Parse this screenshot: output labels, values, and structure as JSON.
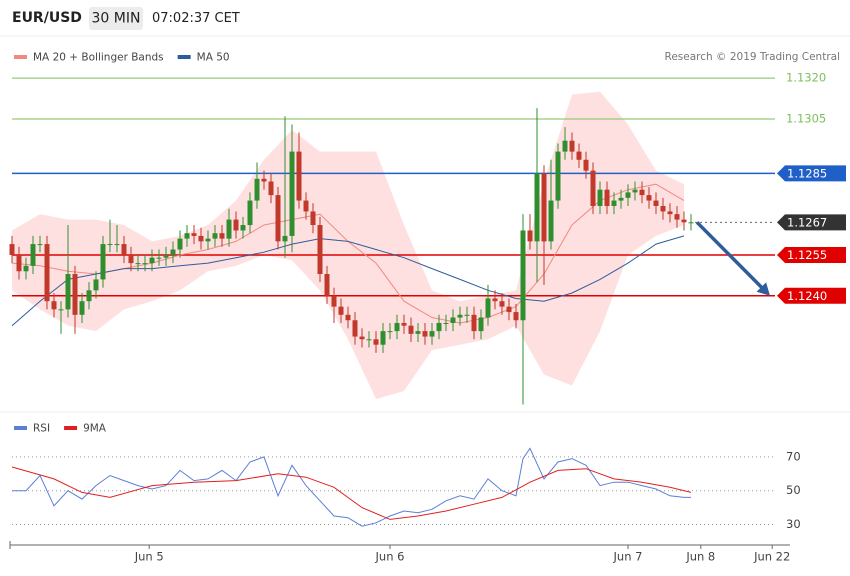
{
  "chart_data": {
    "type": "candlestick",
    "title": "EUR/USD",
    "timeframe": "30 MIN",
    "time": "07:02:37 CET",
    "credit": "Research © 2019 Trading Central",
    "xlim": [
      0,
      109
    ],
    "xticks": [
      {
        "value": 19.6,
        "label": "Jun 5"
      },
      {
        "value": 54,
        "label": "Jun 6"
      },
      {
        "value": 88,
        "label": "Jun 7"
      },
      {
        "value": 98.4,
        "label": "Jun 8"
      },
      {
        "value": 108.6,
        "label": "Jun 22"
      }
    ],
    "ylim": [
      1.1198,
      1.1323
    ],
    "up_color": "#2f8f2f",
    "down_color": "#c0392b",
    "open": [
      1.1259,
      1.1255,
      1.1249,
      1.1251,
      1.1259,
      1.1259,
      1.1238,
      1.1235,
      1.1235,
      1.1248,
      1.1233,
      1.1238,
      1.1242,
      1.1246,
      1.1259,
      1.1259,
      1.1259,
      1.1255,
      1.1252,
      1.1252,
      1.1252,
      1.1254,
      1.1254,
      1.1255,
      1.1257,
      1.1261,
      1.1263,
      1.1262,
      1.126,
      1.1261,
      1.1263,
      1.1261,
      1.1268,
      1.1264,
      1.1266,
      1.1275,
      1.1283,
      1.1282,
      1.1277,
      1.126,
      1.1262,
      1.1293,
      1.1275,
      1.1271,
      1.1266,
      1.1248,
      1.124,
      1.1236,
      1.1233,
      1.1231,
      1.1225,
      1.1224,
      1.1224,
      1.1222,
      1.1227,
      1.1227,
      1.123,
      1.1229,
      1.1226,
      1.1227,
      1.1225,
      1.1227,
      1.123,
      1.123,
      1.1232,
      1.1233,
      1.1233,
      1.1227,
      1.1232,
      1.1239,
      1.1238,
      1.1236,
      1.1234,
      1.1231,
      1.1264,
      1.126,
      1.1285,
      1.126,
      1.1275,
      1.1293,
      1.1297,
      1.1293,
      1.129,
      1.1286,
      1.1273,
      1.1279,
      1.1273,
      1.1275,
      1.1276,
      1.1278,
      1.1279,
      1.1277,
      1.1275,
      1.1273,
      1.1271,
      1.127,
      1.1268,
      1.1267
    ],
    "high": [
      1.1262,
      1.1258,
      1.1254,
      1.1262,
      1.1262,
      1.1262,
      1.1241,
      1.1238,
      1.1266,
      1.1251,
      1.1241,
      1.1245,
      1.1249,
      1.1262,
      1.1268,
      1.1266,
      1.1262,
      1.1258,
      1.1255,
      1.1255,
      1.1257,
      1.1257,
      1.1258,
      1.126,
      1.1264,
      1.1266,
      1.1266,
      1.1265,
      1.1264,
      1.1266,
      1.1266,
      1.1272,
      1.1271,
      1.1269,
      1.1278,
      1.1289,
      1.1286,
      1.1285,
      1.128,
      1.1306,
      1.1303,
      1.13,
      1.1278,
      1.1274,
      1.1269,
      1.1251,
      1.1243,
      1.1239,
      1.1236,
      1.1234,
      1.1228,
      1.1227,
      1.1227,
      1.123,
      1.123,
      1.1233,
      1.1233,
      1.1232,
      1.123,
      1.123,
      1.123,
      1.1233,
      1.1233,
      1.1235,
      1.1236,
      1.1236,
      1.1236,
      1.1235,
      1.1244,
      1.1242,
      1.1241,
      1.1239,
      1.1237,
      1.127,
      1.127,
      1.1309,
      1.1288,
      1.129,
      1.1296,
      1.1302,
      1.13,
      1.1296,
      1.1293,
      1.1289,
      1.1282,
      1.1282,
      1.1278,
      1.1279,
      1.1281,
      1.1282,
      1.1282,
      1.128,
      1.1278,
      1.1276,
      1.1274,
      1.1273,
      1.1271,
      1.127
    ],
    "low": [
      1.1252,
      1.1246,
      1.1246,
      1.1248,
      1.1256,
      1.1235,
      1.1232,
      1.1226,
      1.1232,
      1.1226,
      1.123,
      1.1235,
      1.1239,
      1.1243,
      1.1256,
      1.1256,
      1.1252,
      1.1249,
      1.1249,
      1.1249,
      1.1249,
      1.1251,
      1.1251,
      1.1252,
      1.1254,
      1.1258,
      1.1259,
      1.1257,
      1.1257,
      1.1258,
      1.1258,
      1.1258,
      1.1261,
      1.1261,
      1.1263,
      1.1272,
      1.1279,
      1.1274,
      1.1257,
      1.1254,
      1.1256,
      1.1272,
      1.1268,
      1.1263,
      1.1245,
      1.1237,
      1.123,
      1.123,
      1.1228,
      1.1222,
      1.1221,
      1.1221,
      1.1219,
      1.1219,
      1.1224,
      1.1224,
      1.1226,
      1.1223,
      1.1223,
      1.1222,
      1.1222,
      1.1224,
      1.1227,
      1.1227,
      1.1229,
      1.123,
      1.1224,
      1.1224,
      1.1229,
      1.1235,
      1.1233,
      1.1231,
      1.1228,
      1.12,
      1.1257,
      1.1245,
      1.1244,
      1.1257,
      1.1272,
      1.129,
      1.129,
      1.1287,
      1.1283,
      1.127,
      1.127,
      1.127,
      1.127,
      1.1272,
      1.1273,
      1.1275,
      1.1274,
      1.1272,
      1.127,
      1.1268,
      1.1267,
      1.1265,
      1.1264,
      1.1264
    ],
    "close": [
      1.1255,
      1.1249,
      1.1251,
      1.1259,
      1.1259,
      1.1238,
      1.1235,
      1.1235,
      1.1248,
      1.1233,
      1.1238,
      1.1242,
      1.1246,
      1.1259,
      1.1259,
      1.1259,
      1.1255,
      1.1252,
      1.1252,
      1.1252,
      1.1254,
      1.1254,
      1.1255,
      1.1257,
      1.1261,
      1.1263,
      1.1262,
      1.126,
      1.1261,
      1.1263,
      1.1261,
      1.1268,
      1.1264,
      1.1266,
      1.1275,
      1.1283,
      1.1282,
      1.1277,
      1.126,
      1.1262,
      1.1293,
      1.1275,
      1.1271,
      1.1266,
      1.1248,
      1.124,
      1.1236,
      1.1233,
      1.1231,
      1.1225,
      1.1224,
      1.1224,
      1.1222,
      1.1227,
      1.1227,
      1.123,
      1.1229,
      1.1226,
      1.1227,
      1.1225,
      1.1227,
      1.123,
      1.123,
      1.1232,
      1.1233,
      1.1233,
      1.1227,
      1.1232,
      1.1239,
      1.1238,
      1.1236,
      1.1234,
      1.1231,
      1.1264,
      1.126,
      1.1285,
      1.126,
      1.1275,
      1.1293,
      1.1297,
      1.1293,
      1.129,
      1.1286,
      1.1273,
      1.1279,
      1.1273,
      1.1275,
      1.1276,
      1.1278,
      1.1279,
      1.1277,
      1.1275,
      1.1273,
      1.1271,
      1.127,
      1.1268,
      1.1267,
      1.1267
    ],
    "lines": [
      {
        "name": "MA 20 + Bollinger Bands",
        "color": "#f08a80",
        "band_color": "#ffe0e0",
        "x": [
          0,
          4,
          8,
          12,
          16,
          20,
          24,
          28,
          32,
          36,
          40,
          44,
          48,
          52,
          56,
          60,
          64,
          68,
          72,
          76,
          80,
          84,
          88,
          92,
          96
        ],
        "values": [
          1.1252,
          1.1251,
          1.1249,
          1.1248,
          1.125,
          1.1252,
          1.1255,
          1.1257,
          1.126,
          1.1266,
          1.1268,
          1.127,
          1.126,
          1.1252,
          1.1238,
          1.1232,
          1.123,
          1.1232,
          1.1236,
          1.1248,
          1.1266,
          1.1275,
          1.1279,
          1.1281,
          1.1275
        ],
        "upper": [
          1.1264,
          1.127,
          1.1268,
          1.1268,
          1.1266,
          1.126,
          1.1262,
          1.1266,
          1.1275,
          1.129,
          1.1301,
          1.1293,
          1.1293,
          1.1293,
          1.1266,
          1.1242,
          1.1238,
          1.124,
          1.1242,
          1.1282,
          1.1314,
          1.1315,
          1.1303,
          1.1286,
          1.1281
        ],
        "lower": [
          1.1242,
          1.1235,
          1.1229,
          1.1227,
          1.1235,
          1.1238,
          1.1242,
          1.1249,
          1.1251,
          1.1255,
          1.1253,
          1.1242,
          1.1224,
          1.1202,
          1.1205,
          1.122,
          1.1222,
          1.1224,
          1.1229,
          1.1211,
          1.1207,
          1.1227,
          1.1255,
          1.1262,
          1.1266
        ]
      },
      {
        "name": "MA 50",
        "color": "#2f5d9c",
        "x": [
          0,
          4,
          8,
          12,
          16,
          20,
          24,
          28,
          32,
          36,
          40,
          44,
          48,
          52,
          56,
          60,
          64,
          68,
          72,
          76,
          80,
          84,
          88,
          92,
          96
        ],
        "values": [
          1.1229,
          1.1238,
          1.1246,
          1.1248,
          1.125,
          1.125,
          1.1251,
          1.1252,
          1.1254,
          1.1256,
          1.1259,
          1.1261,
          1.126,
          1.1257,
          1.1254,
          1.125,
          1.1246,
          1.1242,
          1.1239,
          1.1238,
          1.1241,
          1.1246,
          1.1252,
          1.1259,
          1.1262
        ]
      }
    ],
    "levels": [
      {
        "value": 1.132,
        "label": "1.1320",
        "color": "#7cbf5a",
        "style": "solid",
        "boxed": false
      },
      {
        "value": 1.1305,
        "label": "1.1305",
        "color": "#7cbf5a",
        "style": "solid",
        "boxed": false
      },
      {
        "value": 1.1285,
        "label": "1.1285",
        "color": "#1f5fc8",
        "style": "solid",
        "boxed": true
      },
      {
        "value": 1.1267,
        "label": "1.1267",
        "color": "#333333",
        "style": "dotted",
        "boxed": true
      },
      {
        "value": 1.1255,
        "label": "1.1255",
        "color": "#e00000",
        "style": "solid",
        "boxed": true
      },
      {
        "value": 1.124,
        "label": "1.1240",
        "color": "#e00000",
        "style": "solid",
        "boxed": true
      }
    ],
    "arrow_color": "#2f5d9c",
    "rsi": {
      "type": "line",
      "ylim": [
        22,
        80
      ],
      "yticks": [
        70,
        50,
        30
      ],
      "series": [
        {
          "name": "RSI",
          "color": "#5b7fd6",
          "x": [
            0,
            2,
            4,
            6,
            8,
            10,
            12,
            14,
            16,
            18,
            20,
            22,
            24,
            26,
            28,
            30,
            32,
            34,
            36,
            38,
            40,
            42,
            44,
            46,
            48,
            50,
            52,
            54,
            56,
            58,
            60,
            62,
            64,
            66,
            68,
            70,
            72,
            73,
            74,
            76,
            78,
            80,
            82,
            84,
            86,
            88,
            90,
            92,
            94,
            96,
            97
          ],
          "values": [
            50,
            50,
            59,
            41,
            50,
            45,
            53,
            59,
            56,
            53,
            51,
            53,
            62,
            56,
            57,
            62,
            56,
            67,
            70,
            47,
            65,
            53,
            44,
            35,
            34,
            29,
            31,
            35,
            38,
            37,
            39,
            44,
            47,
            45,
            57,
            50,
            47,
            69,
            75,
            57,
            67,
            69,
            65,
            53,
            55,
            55,
            53,
            51,
            47,
            46,
            46
          ]
        },
        {
          "name": "9MA",
          "color": "#e02020",
          "x": [
            0,
            6,
            10,
            14,
            20,
            26,
            32,
            38,
            42,
            46,
            50,
            54,
            58,
            62,
            66,
            70,
            74,
            78,
            82,
            86,
            90,
            94,
            97
          ],
          "values": [
            64,
            57,
            49,
            46,
            53,
            55,
            56,
            60,
            58,
            52,
            40,
            33,
            35,
            38,
            42,
            46,
            55,
            62,
            63,
            57,
            55,
            52,
            49
          ]
        }
      ]
    }
  }
}
